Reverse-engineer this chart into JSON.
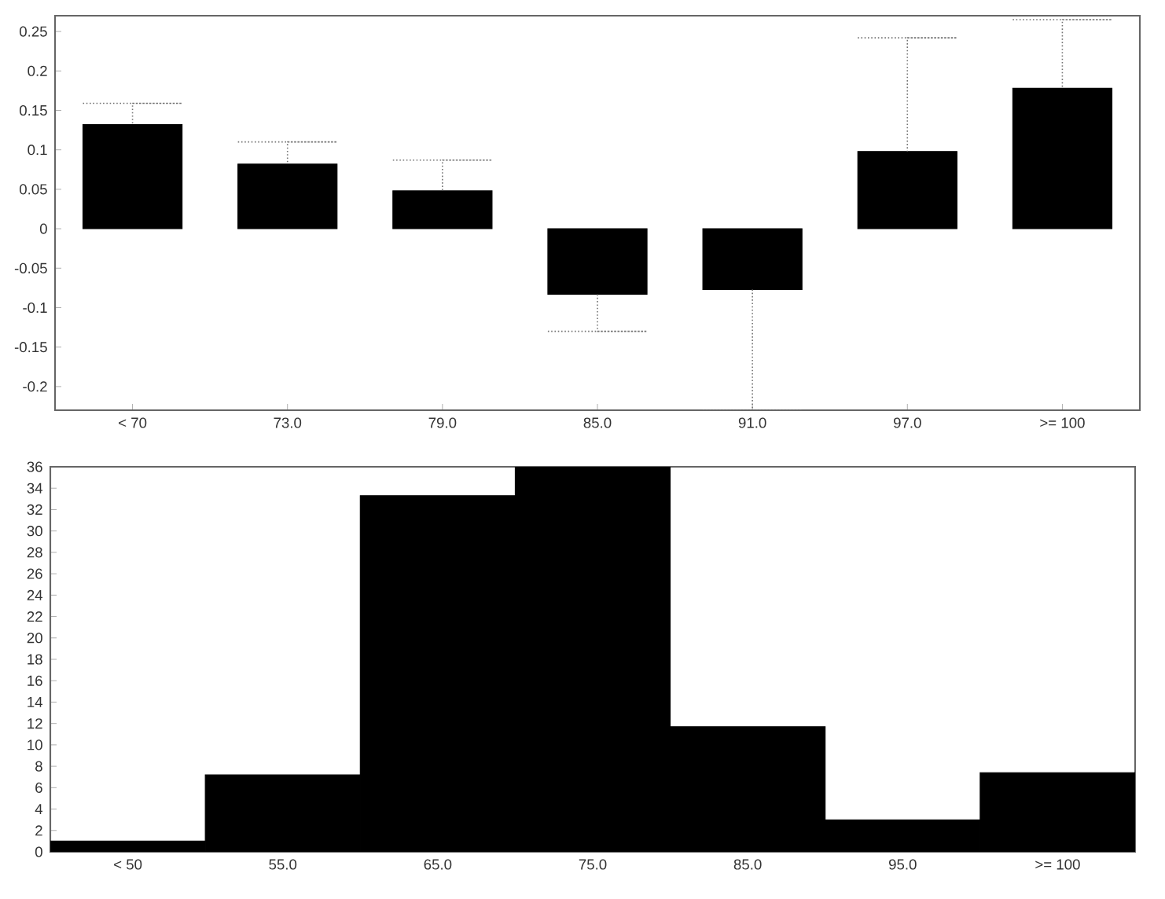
{
  "chart_data": [
    {
      "type": "bar",
      "categories": [
        "< 70",
        "73.0",
        "79.0",
        "85.0",
        "91.0",
        "97.0",
        ">= 100"
      ],
      "values": [
        0.132,
        0.082,
        0.048,
        -0.083,
        -0.077,
        0.098,
        0.178
      ],
      "errors": [
        [
          0.132,
          0.159
        ],
        [
          0.082,
          0.11
        ],
        [
          0.048,
          0.087
        ],
        [
          -0.13,
          -0.083
        ],
        [
          -0.23,
          -0.077
        ],
        [
          0.098,
          0.242
        ],
        [
          0.178,
          0.265
        ]
      ],
      "color": "#000000",
      "ylim": [
        -0.23,
        0.27
      ],
      "yticks": [
        -0.2,
        -0.15,
        -0.1,
        -0.05,
        0,
        0.05,
        0.1,
        0.15,
        0.2,
        0.25
      ],
      "grid": false
    },
    {
      "type": "bar",
      "categories": [
        "< 50",
        "55.0",
        "65.0",
        "75.0",
        "85.0",
        "95.0",
        ">= 100"
      ],
      "values": [
        1,
        7.2,
        33.3,
        36,
        11.7,
        3,
        7.4
      ],
      "color": "#000000",
      "ylim": [
        0,
        36
      ],
      "yticks": [
        0,
        2,
        4,
        6,
        8,
        10,
        12,
        14,
        16,
        18,
        20,
        22,
        24,
        26,
        28,
        30,
        32,
        34,
        36
      ],
      "grid": false
    }
  ]
}
